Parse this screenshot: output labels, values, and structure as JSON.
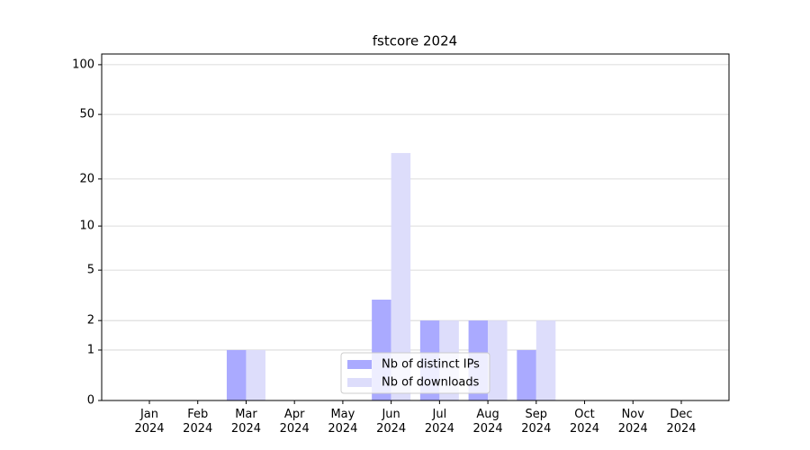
{
  "chart_data": {
    "type": "bar",
    "title": "fstcore 2024",
    "categories": [
      "Jan 2024",
      "Feb 2024",
      "Mar 2024",
      "Apr 2024",
      "May 2024",
      "Jun 2024",
      "Jul 2024",
      "Aug 2024",
      "Sep 2024",
      "Oct 2024",
      "Nov 2024",
      "Dec 2024"
    ],
    "series": [
      {
        "name": "Nb of distinct IPs",
        "color": "#aaaaff",
        "values": [
          0,
          0,
          1,
          0,
          0,
          3,
          2,
          2,
          1,
          0,
          0,
          0
        ]
      },
      {
        "name": "Nb of downloads",
        "color": "#ddddfb",
        "values": [
          0,
          0,
          1,
          0,
          0,
          29,
          2,
          2,
          2,
          0,
          0,
          0
        ]
      }
    ],
    "yscale": "symlog",
    "ylim": [
      0,
      116
    ],
    "yticks": [
      0,
      1,
      2,
      5,
      10,
      20,
      50,
      100
    ],
    "grid": true,
    "legend": "lower center"
  }
}
